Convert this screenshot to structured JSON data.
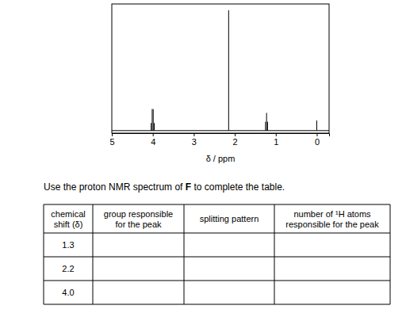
{
  "chart_data": {
    "type": "stick",
    "x_label": "δ / ppm",
    "x": [
      0,
      1.2,
      1.225,
      1.25,
      2.15,
      3.965,
      3.99,
      4.015,
      4.04
    ],
    "values": [
      8,
      7,
      14,
      7,
      95,
      6,
      17,
      17,
      6
    ],
    "color": "#000000",
    "xlim": [
      5,
      -0.3
    ],
    "xticks": [
      5,
      4,
      3,
      2,
      1,
      0
    ],
    "ylim": [
      -2,
      100
    ],
    "grid": false,
    "tick_labels": "x"
  },
  "question": {
    "before": "Use the proton NMR spectrum of ",
    "bold": "F",
    "after": " to complete the table."
  },
  "table": {
    "headers": [
      [
        "chemical",
        "shift (δ)"
      ],
      [
        "group responsible",
        "for the peak"
      ],
      [
        "splitting pattern"
      ],
      [
        "number of ¹H atoms",
        "responsible for the peak"
      ]
    ],
    "rows": [
      "1.3",
      "2.2",
      "4.0"
    ]
  }
}
